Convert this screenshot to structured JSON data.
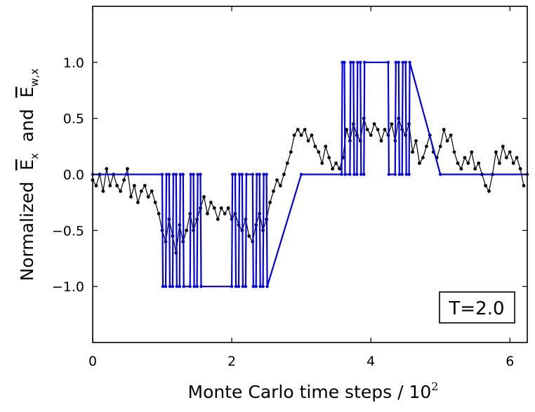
{
  "chart_data": {
    "type": "line",
    "title": "",
    "xlabel": "Monte Carlo time steps / 10",
    "xlabel_exponent": "2",
    "ylabel_prefix": "Normalized  ",
    "ylabel_symbol_x": "E",
    "ylabel_sub_x": "x",
    "ylabel_and": "  and  ",
    "ylabel_symbol_wx": "E",
    "ylabel_sub_wx": "w,x",
    "xlim": [
      0,
      6.25
    ],
    "ylim": [
      -1.5,
      1.5
    ],
    "x_ticks": [
      0,
      2,
      4,
      6
    ],
    "x_tick_labels": [
      "0",
      "2",
      "4",
      "6"
    ],
    "y_ticks": [
      -1.0,
      -0.5,
      0.0,
      0.5,
      1.0
    ],
    "y_tick_labels": [
      "−1.0",
      "−0.5",
      "0.0",
      "0.5",
      "1.0"
    ],
    "grid": false,
    "annotation": "T=2.0",
    "annotation_position": "bottom-right",
    "colors": {
      "black_series": "#000000",
      "blue_series": "#0000ee"
    },
    "series": [
      {
        "color": "#000000",
        "marker": "circle",
        "x": [
          0.0,
          0.05,
          0.1,
          0.15,
          0.2,
          0.25,
          0.3,
          0.35,
          0.4,
          0.45,
          0.5,
          0.55,
          0.6,
          0.65,
          0.7,
          0.75,
          0.8,
          0.85,
          0.9,
          0.95,
          1.0,
          1.05,
          1.1,
          1.15,
          1.2,
          1.25,
          1.3,
          1.35,
          1.4,
          1.45,
          1.5,
          1.55,
          1.6,
          1.65,
          1.7,
          1.75,
          1.8,
          1.85,
          1.9,
          1.95,
          2.0,
          2.05,
          2.1,
          2.15,
          2.2,
          2.25,
          2.3,
          2.35,
          2.4,
          2.45,
          2.5,
          2.55,
          2.6,
          2.65,
          2.7,
          2.75,
          2.8,
          2.85,
          2.9,
          2.95,
          3.0,
          3.05,
          3.1,
          3.15,
          3.2,
          3.25,
          3.3,
          3.35,
          3.4,
          3.45,
          3.5,
          3.55,
          3.6,
          3.65,
          3.7,
          3.75,
          3.8,
          3.85,
          3.9,
          3.95,
          4.0,
          4.05,
          4.1,
          4.15,
          4.2,
          4.25,
          4.3,
          4.35,
          4.4,
          4.45,
          4.5,
          4.55,
          4.6,
          4.65,
          4.7,
          4.75,
          4.8,
          4.85,
          4.9,
          4.95,
          5.0,
          5.05,
          5.1,
          5.15,
          5.2,
          5.25,
          5.3,
          5.35,
          5.4,
          5.45,
          5.5,
          5.55,
          5.6,
          5.65,
          5.7,
          5.75,
          5.8,
          5.85,
          5.9,
          5.95,
          6.0,
          6.05,
          6.1,
          6.15,
          6.2
        ],
        "y": [
          -0.05,
          -0.1,
          0.0,
          -0.15,
          0.05,
          -0.1,
          0.0,
          -0.1,
          -0.15,
          -0.05,
          0.05,
          -0.2,
          -0.1,
          -0.25,
          -0.15,
          -0.1,
          -0.2,
          -0.15,
          -0.25,
          -0.35,
          -0.5,
          -0.6,
          -0.4,
          -0.55,
          -0.7,
          -0.45,
          -0.6,
          -0.5,
          -0.35,
          -0.5,
          -0.4,
          -0.3,
          -0.2,
          -0.35,
          -0.25,
          -0.3,
          -0.4,
          -0.3,
          -0.35,
          -0.3,
          -0.4,
          -0.35,
          -0.45,
          -0.5,
          -0.4,
          -0.55,
          -0.6,
          -0.45,
          -0.35,
          -0.5,
          -0.4,
          -0.25,
          -0.15,
          -0.05,
          -0.1,
          0.0,
          0.1,
          0.2,
          0.35,
          0.4,
          0.35,
          0.4,
          0.3,
          0.35,
          0.25,
          0.2,
          0.1,
          0.25,
          0.15,
          0.05,
          0.1,
          0.05,
          0.15,
          0.4,
          0.3,
          0.45,
          0.35,
          0.3,
          0.5,
          0.4,
          0.35,
          0.45,
          0.4,
          0.3,
          0.4,
          0.35,
          0.45,
          0.3,
          0.5,
          0.4,
          0.35,
          0.45,
          0.2,
          0.3,
          0.1,
          0.15,
          0.25,
          0.35,
          0.2,
          0.15,
          0.25,
          0.4,
          0.3,
          0.35,
          0.2,
          0.1,
          0.05,
          0.15,
          0.1,
          0.2,
          0.05,
          0.1,
          0.0,
          -0.1,
          -0.15,
          0.0,
          0.2,
          0.1,
          0.25,
          0.15,
          0.2,
          0.1,
          0.15,
          0.05,
          -0.1
        ]
      },
      {
        "color": "#0000ee",
        "marker": "circle",
        "x": [
          0.0,
          0.5,
          1.0,
          1.01,
          1.05,
          1.06,
          1.1,
          1.11,
          1.15,
          1.16,
          1.2,
          1.21,
          1.25,
          1.26,
          1.3,
          1.31,
          1.4,
          1.41,
          1.45,
          1.46,
          1.5,
          1.51,
          1.55,
          1.56,
          2.0,
          2.01,
          2.05,
          2.06,
          2.1,
          2.11,
          2.15,
          2.16,
          2.2,
          2.21,
          2.3,
          2.31,
          2.35,
          2.36,
          2.4,
          2.41,
          2.45,
          2.46,
          2.5,
          2.51,
          3.0,
          3.58,
          3.59,
          3.62,
          3.63,
          3.7,
          3.71,
          3.75,
          3.76,
          3.8,
          3.81,
          3.85,
          3.86,
          3.9,
          3.91,
          4.25,
          4.26,
          4.35,
          4.36,
          4.4,
          4.41,
          4.45,
          4.46,
          4.5,
          4.51,
          4.55,
          4.56,
          5.0,
          6.25
        ],
        "y": [
          0,
          0,
          0,
          -1,
          -1,
          0,
          0,
          -1,
          -1,
          0,
          0,
          -1,
          -1,
          0,
          0,
          -1,
          -1,
          0,
          0,
          -1,
          -1,
          0,
          0,
          -1,
          -1,
          0,
          0,
          -1,
          -1,
          0,
          0,
          -1,
          -1,
          0,
          0,
          -1,
          -1,
          0,
          0,
          -1,
          -1,
          0,
          0,
          -1,
          0,
          0,
          1,
          1,
          0,
          0,
          1,
          1,
          0,
          0,
          1,
          1,
          0,
          0,
          1,
          1,
          0,
          0,
          1,
          1,
          0,
          0,
          1,
          1,
          0,
          0,
          1,
          0,
          0
        ]
      }
    ]
  }
}
